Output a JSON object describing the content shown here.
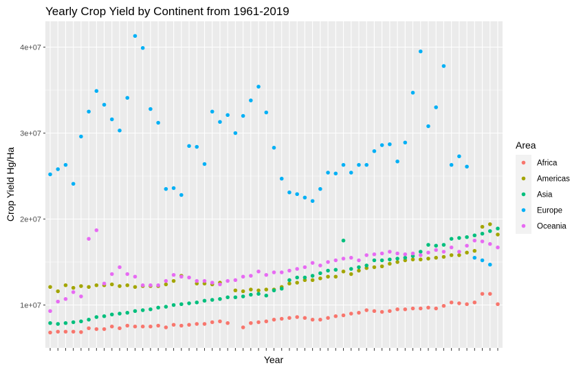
{
  "chart_data": {
    "type": "scatter",
    "title": "Yearly Crop Yield by Continent from 1961-2019",
    "xlabel": "Year",
    "ylabel": "Crop Yield Hg/Ha",
    "x": [
      1961,
      1962,
      1963,
      1964,
      1965,
      1966,
      1967,
      1968,
      1969,
      1970,
      1971,
      1972,
      1973,
      1974,
      1975,
      1976,
      1977,
      1978,
      1979,
      1980,
      1981,
      1982,
      1983,
      1984,
      1985,
      1986,
      1987,
      1988,
      1989,
      1990,
      1991,
      1992,
      1993,
      1994,
      1995,
      1996,
      1997,
      1998,
      1999,
      2000,
      2001,
      2002,
      2003,
      2004,
      2005,
      2006,
      2007,
      2008,
      2009,
      2010,
      2011,
      2012,
      2013,
      2014,
      2015,
      2016,
      2017,
      2018,
      2019
    ],
    "xlim": [
      1961,
      2019
    ],
    "ylim": [
      5000000,
      43000000
    ],
    "y_ticks": [
      10000000,
      20000000,
      30000000,
      40000000
    ],
    "y_tick_labels": [
      "1e+07",
      "2e+07",
      "3e+07",
      "4e+07"
    ],
    "x_tick_labels_shown": false,
    "grid": true,
    "legend": {
      "title": "Area",
      "position": "right"
    },
    "series": [
      {
        "name": "Africa",
        "color": "#F8766D",
        "values": [
          6800000,
          6900000,
          6900000,
          6900000,
          6850000,
          7300000,
          7200000,
          7200000,
          7500000,
          7300000,
          7600000,
          7500000,
          7500000,
          7500000,
          7600000,
          7400000,
          7700000,
          7600000,
          7700000,
          7800000,
          7800000,
          8000000,
          8100000,
          7900000,
          null,
          7400000,
          7900000,
          8000000,
          8100000,
          8300000,
          8400000,
          8500000,
          8600000,
          8500000,
          8300000,
          8300000,
          8500000,
          8700000,
          8800000,
          9000000,
          9100000,
          9400000,
          9300000,
          9200000,
          9300000,
          9500000,
          9500000,
          9600000,
          9600000,
          9700000,
          9600000,
          9900000,
          10300000,
          10200000,
          10100000,
          10300000,
          11300000,
          11300000,
          10100000
        ]
      },
      {
        "name": "Americas",
        "color": "#A3A500",
        "values": [
          12100000,
          11600000,
          12300000,
          12000000,
          12200000,
          12100000,
          12300000,
          12300000,
          12400000,
          12200000,
          12300000,
          12100000,
          12200000,
          12200000,
          12200000,
          12400000,
          12800000,
          13400000,
          null,
          12500000,
          12500000,
          12400000,
          12600000,
          null,
          11700000,
          11600000,
          11800000,
          11700000,
          11800000,
          11800000,
          12100000,
          12500000,
          12600000,
          12900000,
          12900000,
          13100000,
          13300000,
          13300000,
          13900000,
          13600000,
          14000000,
          14300000,
          14400000,
          14500000,
          14800000,
          15000000,
          15200000,
          15300000,
          15300000,
          15400000,
          15500000,
          15600000,
          15800000,
          15800000,
          16100000,
          16300000,
          19100000,
          19400000,
          18200000
        ]
      },
      {
        "name": "Asia",
        "color": "#00BF7D",
        "values": [
          7900000,
          7800000,
          7900000,
          8000000,
          8100000,
          8300000,
          8600000,
          8700000,
          8900000,
          9000000,
          9100000,
          9300000,
          9400000,
          9500000,
          9700000,
          9800000,
          10000000,
          10100000,
          10200000,
          10300000,
          10500000,
          10600000,
          10700000,
          10900000,
          10900000,
          11000000,
          11200000,
          11300000,
          11100000,
          11700000,
          11900000,
          12900000,
          13200000,
          13200000,
          13400000,
          13700000,
          14000000,
          14100000,
          17500000,
          14200000,
          14400000,
          14600000,
          15200000,
          15200000,
          15300000,
          15400000,
          15500000,
          15700000,
          16200000,
          17000000,
          16900000,
          17000000,
          17700000,
          17800000,
          17900000,
          18100000,
          18300000,
          18600000,
          18900000
        ]
      },
      {
        "name": "Europe",
        "color": "#00B0F6",
        "values": [
          25200000,
          25800000,
          26300000,
          24100000,
          29600000,
          32500000,
          34900000,
          33300000,
          31600000,
          30300000,
          34100000,
          41300000,
          39900000,
          32800000,
          31200000,
          23500000,
          23600000,
          22800000,
          28500000,
          28400000,
          26400000,
          32500000,
          31300000,
          32100000,
          30000000,
          32000000,
          33800000,
          35400000,
          32400000,
          28300000,
          24700000,
          23100000,
          22900000,
          22500000,
          22100000,
          23500000,
          25400000,
          25300000,
          26300000,
          25400000,
          26300000,
          26300000,
          27900000,
          28600000,
          28700000,
          26700000,
          28900000,
          34700000,
          39500000,
          30800000,
          33000000,
          37800000,
          26300000,
          27300000,
          26100000,
          15500000,
          15200000,
          14700000,
          null
        ]
      },
      {
        "name": "Oceania",
        "color": "#E76BF3",
        "values": [
          9300000,
          10400000,
          10700000,
          11500000,
          11000000,
          17700000,
          18700000,
          12500000,
          13600000,
          14400000,
          13600000,
          13300000,
          12300000,
          12300000,
          12300000,
          12800000,
          13500000,
          13300000,
          13200000,
          12800000,
          12800000,
          12600000,
          12400000,
          12800000,
          12900000,
          13300000,
          13400000,
          13900000,
          13500000,
          13800000,
          13800000,
          14000000,
          14200000,
          14400000,
          14900000,
          14600000,
          15000000,
          15200000,
          15400000,
          15500000,
          15200000,
          15800000,
          15900000,
          16000000,
          16200000,
          16000000,
          15900000,
          16000000,
          15800000,
          16100000,
          16400000,
          16200000,
          16700000,
          16200000,
          16900000,
          17500000,
          17400000,
          17100000,
          16700000
        ]
      }
    ]
  }
}
